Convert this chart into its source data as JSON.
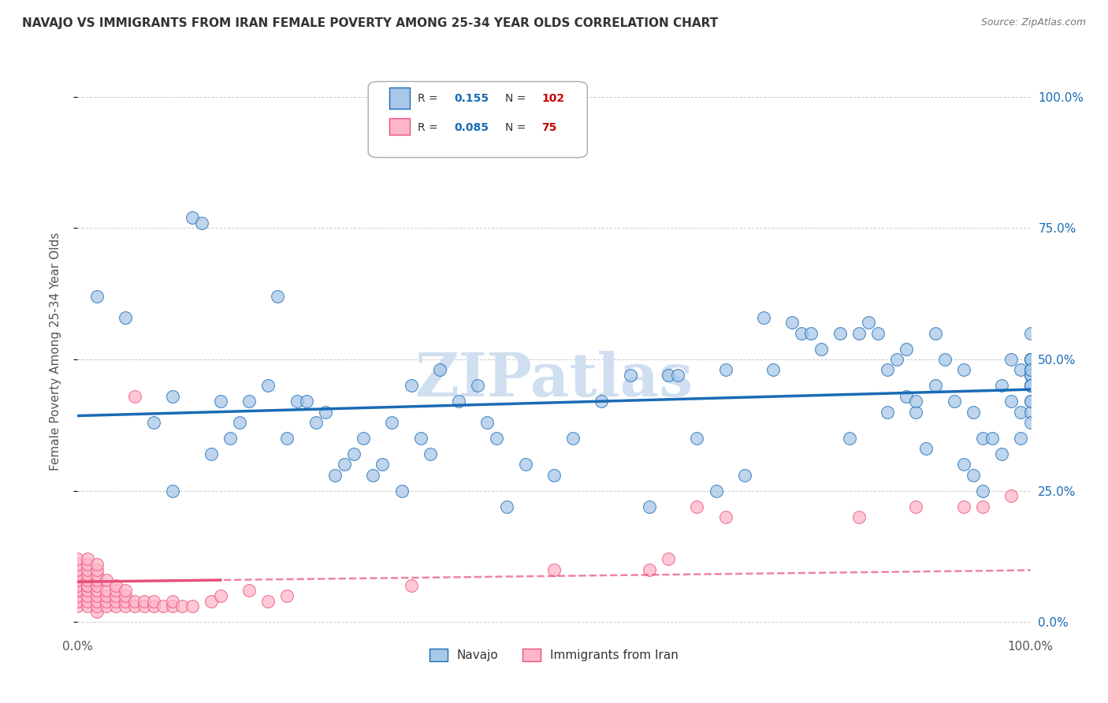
{
  "title": "NAVAJO VS IMMIGRANTS FROM IRAN FEMALE POVERTY AMONG 25-34 YEAR OLDS CORRELATION CHART",
  "source": "Source: ZipAtlas.com",
  "ylabel": "Female Poverty Among 25-34 Year Olds",
  "xlim": [
    0.0,
    1.0
  ],
  "ylim": [
    -0.02,
    1.05
  ],
  "ytick_labels": [
    "0.0%",
    "25.0%",
    "50.0%",
    "75.0%",
    "100.0%"
  ],
  "ytick_vals": [
    0.0,
    0.25,
    0.5,
    0.75,
    1.0
  ],
  "navajo_color": "#a8c8e8",
  "iran_color": "#ffb6c8",
  "navajo_line_color": "#1a6bb5",
  "iran_line_color": "#e8507a",
  "navajo_R": 0.155,
  "navajo_N": 102,
  "iran_R": 0.085,
  "iran_N": 75,
  "watermark": "ZIPatlas",
  "watermark_color": "#d0dff0",
  "legend_navajo": "Navajo",
  "legend_iran": "Immigrants from Iran",
  "navajo_x": [
    0.02,
    0.05,
    0.08,
    0.1,
    0.1,
    0.12,
    0.13,
    0.14,
    0.15,
    0.16,
    0.17,
    0.18,
    0.2,
    0.21,
    0.22,
    0.23,
    0.24,
    0.25,
    0.26,
    0.27,
    0.28,
    0.29,
    0.3,
    0.31,
    0.32,
    0.33,
    0.34,
    0.35,
    0.36,
    0.37,
    0.38,
    0.4,
    0.42,
    0.43,
    0.44,
    0.45,
    0.47,
    0.5,
    0.52,
    0.55,
    0.58,
    0.6,
    0.62,
    0.63,
    0.65,
    0.67,
    0.68,
    0.7,
    0.72,
    0.73,
    0.75,
    0.76,
    0.77,
    0.78,
    0.8,
    0.81,
    0.82,
    0.83,
    0.84,
    0.85,
    0.85,
    0.86,
    0.87,
    0.87,
    0.88,
    0.88,
    0.89,
    0.9,
    0.9,
    0.91,
    0.92,
    0.93,
    0.93,
    0.94,
    0.94,
    0.95,
    0.95,
    0.96,
    0.97,
    0.97,
    0.98,
    0.98,
    0.99,
    0.99,
    0.99,
    1.0,
    1.0,
    1.0,
    1.0,
    1.0,
    1.0,
    1.0,
    1.0,
    1.0,
    1.0,
    1.0,
    1.0,
    1.0,
    1.0,
    1.0,
    1.0,
    1.0
  ],
  "navajo_y": [
    0.62,
    0.58,
    0.38,
    0.43,
    0.25,
    0.77,
    0.76,
    0.32,
    0.42,
    0.35,
    0.38,
    0.42,
    0.45,
    0.62,
    0.35,
    0.42,
    0.42,
    0.38,
    0.4,
    0.28,
    0.3,
    0.32,
    0.35,
    0.28,
    0.3,
    0.38,
    0.25,
    0.45,
    0.35,
    0.32,
    0.48,
    0.42,
    0.45,
    0.38,
    0.35,
    0.22,
    0.3,
    0.28,
    0.35,
    0.42,
    0.47,
    0.22,
    0.47,
    0.47,
    0.35,
    0.25,
    0.48,
    0.28,
    0.58,
    0.48,
    0.57,
    0.55,
    0.55,
    0.52,
    0.55,
    0.35,
    0.55,
    0.57,
    0.55,
    0.48,
    0.4,
    0.5,
    0.52,
    0.43,
    0.4,
    0.42,
    0.33,
    0.45,
    0.55,
    0.5,
    0.42,
    0.3,
    0.48,
    0.4,
    0.28,
    0.35,
    0.25,
    0.35,
    0.45,
    0.32,
    0.5,
    0.42,
    0.48,
    0.4,
    0.35,
    0.5,
    0.45,
    0.47,
    0.42,
    0.48,
    0.5,
    0.4,
    0.55,
    0.47,
    0.5,
    0.45,
    0.42,
    0.38,
    0.5,
    0.48,
    0.45,
    0.45
  ],
  "iran_x": [
    0.0,
    0.0,
    0.0,
    0.0,
    0.0,
    0.0,
    0.0,
    0.0,
    0.0,
    0.0,
    0.0,
    0.0,
    0.01,
    0.01,
    0.01,
    0.01,
    0.01,
    0.01,
    0.01,
    0.01,
    0.01,
    0.01,
    0.01,
    0.02,
    0.02,
    0.02,
    0.02,
    0.02,
    0.02,
    0.02,
    0.02,
    0.02,
    0.02,
    0.03,
    0.03,
    0.03,
    0.03,
    0.03,
    0.04,
    0.04,
    0.04,
    0.04,
    0.04,
    0.05,
    0.05,
    0.05,
    0.05,
    0.06,
    0.06,
    0.06,
    0.07,
    0.07,
    0.08,
    0.08,
    0.09,
    0.1,
    0.1,
    0.11,
    0.12,
    0.14,
    0.15,
    0.18,
    0.2,
    0.22,
    0.35,
    0.5,
    0.6,
    0.62,
    0.65,
    0.68,
    0.82,
    0.88,
    0.93,
    0.95,
    0.98
  ],
  "iran_y": [
    0.03,
    0.04,
    0.05,
    0.06,
    0.06,
    0.07,
    0.08,
    0.08,
    0.09,
    0.1,
    0.11,
    0.12,
    0.03,
    0.04,
    0.05,
    0.06,
    0.07,
    0.07,
    0.08,
    0.09,
    0.1,
    0.11,
    0.12,
    0.02,
    0.03,
    0.04,
    0.05,
    0.06,
    0.07,
    0.08,
    0.09,
    0.1,
    0.11,
    0.03,
    0.04,
    0.05,
    0.06,
    0.08,
    0.03,
    0.04,
    0.05,
    0.06,
    0.07,
    0.03,
    0.04,
    0.05,
    0.06,
    0.03,
    0.04,
    0.43,
    0.03,
    0.04,
    0.03,
    0.04,
    0.03,
    0.03,
    0.04,
    0.03,
    0.03,
    0.04,
    0.05,
    0.06,
    0.04,
    0.05,
    0.07,
    0.1,
    0.1,
    0.12,
    0.22,
    0.2,
    0.2,
    0.22,
    0.22,
    0.22,
    0.24
  ]
}
